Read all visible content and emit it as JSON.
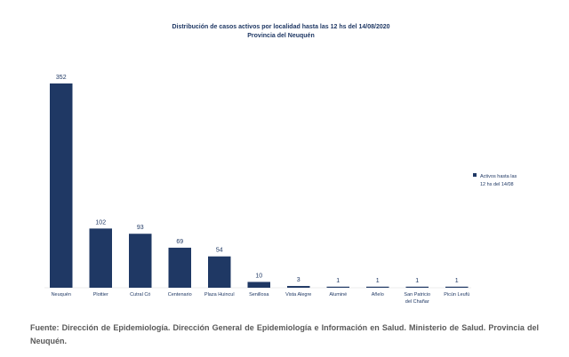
{
  "chart_data": {
    "type": "bar",
    "title_lines": [
      "Distribución de casos activos por localidad hasta las 12 hs del  14/08/2020",
      "Provincia del Neuquén"
    ],
    "categories": [
      [
        "Neuquén"
      ],
      [
        "Plottier"
      ],
      [
        "Cutral Có"
      ],
      [
        "Centenario"
      ],
      [
        "Plaza Huincul"
      ],
      [
        "Senillosa"
      ],
      [
        "Vista Alegre"
      ],
      [
        "Aluminé"
      ],
      [
        "Añelo"
      ],
      [
        "San Patricio",
        "del Chañar"
      ],
      [
        "Picún Leufú"
      ]
    ],
    "series": [
      {
        "name": "Activos hasta las 12 hs del 14/08",
        "name_lines": [
          "Activos hasta las",
          "12 hs del 14/08"
        ],
        "values": [
          352,
          102,
          93,
          69,
          54,
          10,
          3,
          1,
          1,
          1,
          1
        ]
      }
    ],
    "xlabel": "",
    "ylabel": "",
    "ylim": [
      0,
      352
    ],
    "grid": false,
    "legend": "right",
    "bar_color": "#1f3864",
    "text_color": "#1f3864"
  },
  "source_note": "Fuente: Dirección de Epidemiología. Dirección General de Epidemiología e Información en Salud. Ministerio de Salud. Provincia del Neuquén."
}
